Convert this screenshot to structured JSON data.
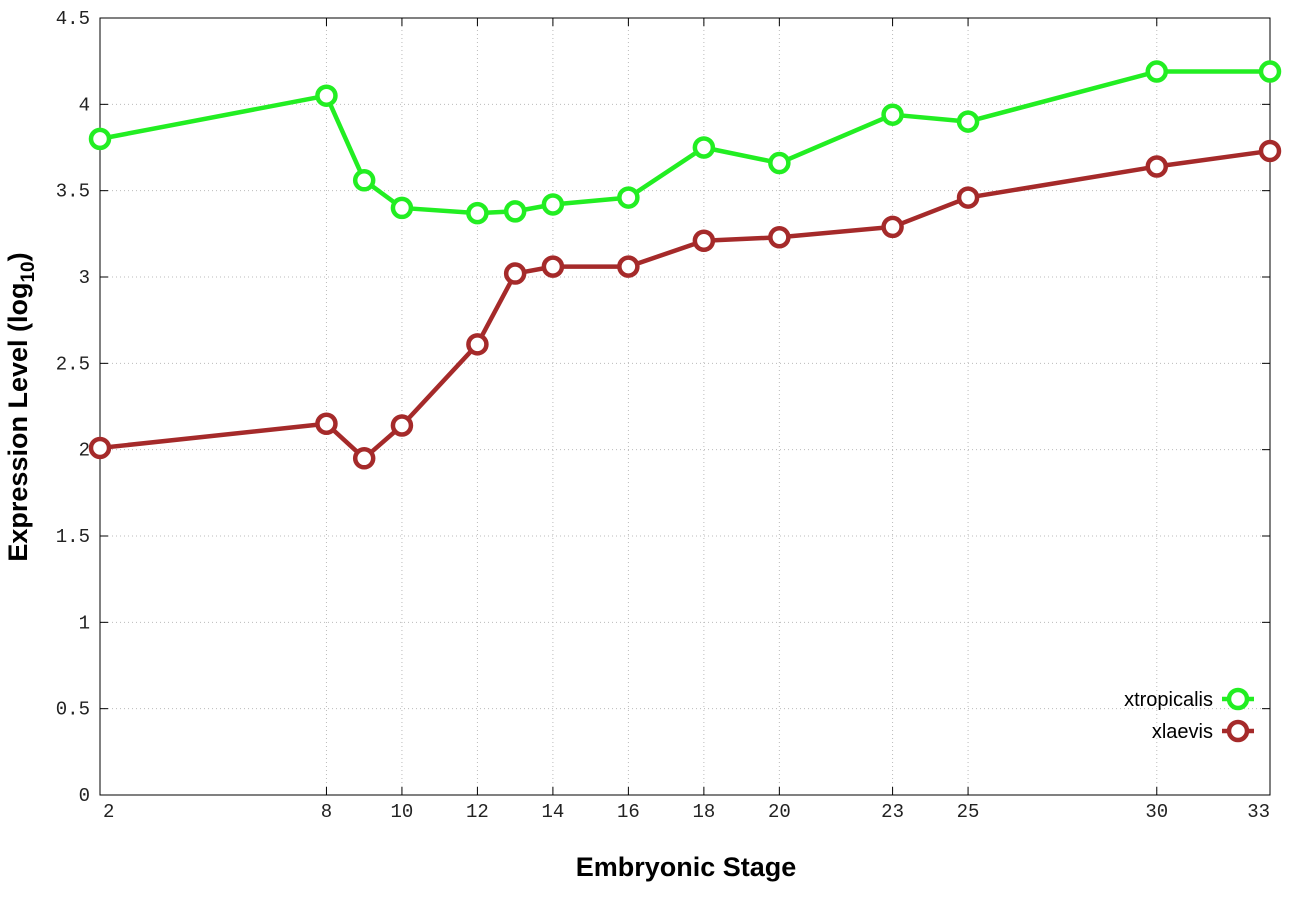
{
  "chart_data": {
    "type": "line",
    "title": "",
    "xlabel": "Embryonic Stage",
    "ylabel": "Expression Level (log",
    "ylabel_sub": "10",
    "ylabel_close": ")",
    "xlim": [
      2,
      33
    ],
    "ylim": [
      0,
      4.5
    ],
    "grid": true,
    "legend_position": "bottom-right",
    "x_ticks": [
      2,
      8,
      10,
      12,
      14,
      16,
      18,
      20,
      23,
      25,
      30,
      33
    ],
    "x_tick_labels": [
      "2",
      "8",
      "10",
      "12",
      "14",
      "16",
      "18",
      "20",
      "23",
      "25",
      "30",
      "33"
    ],
    "y_ticks": [
      0,
      0.5,
      1,
      1.5,
      2,
      2.5,
      3,
      3.5,
      4,
      4.5
    ],
    "y_tick_labels": [
      "0",
      "0.5",
      "1",
      "1.5",
      "2",
      "2.5",
      "3",
      "3.5",
      "4",
      "4.5"
    ],
    "x": [
      2,
      8,
      9,
      10,
      12,
      13,
      14,
      16,
      18,
      20,
      23,
      25,
      30,
      33
    ],
    "series": [
      {
        "name": "xtropicalis",
        "color": "#22ee22",
        "values": [
          3.8,
          4.05,
          3.56,
          3.4,
          3.37,
          3.38,
          3.42,
          3.46,
          3.75,
          3.66,
          3.94,
          3.9,
          4.19,
          4.19
        ]
      },
      {
        "name": "xlaevis",
        "color": "#a52a2a",
        "values": [
          2.01,
          2.15,
          1.95,
          2.14,
          2.61,
          3.02,
          3.06,
          3.06,
          3.21,
          3.23,
          3.29,
          3.46,
          3.64,
          3.73
        ]
      }
    ]
  }
}
